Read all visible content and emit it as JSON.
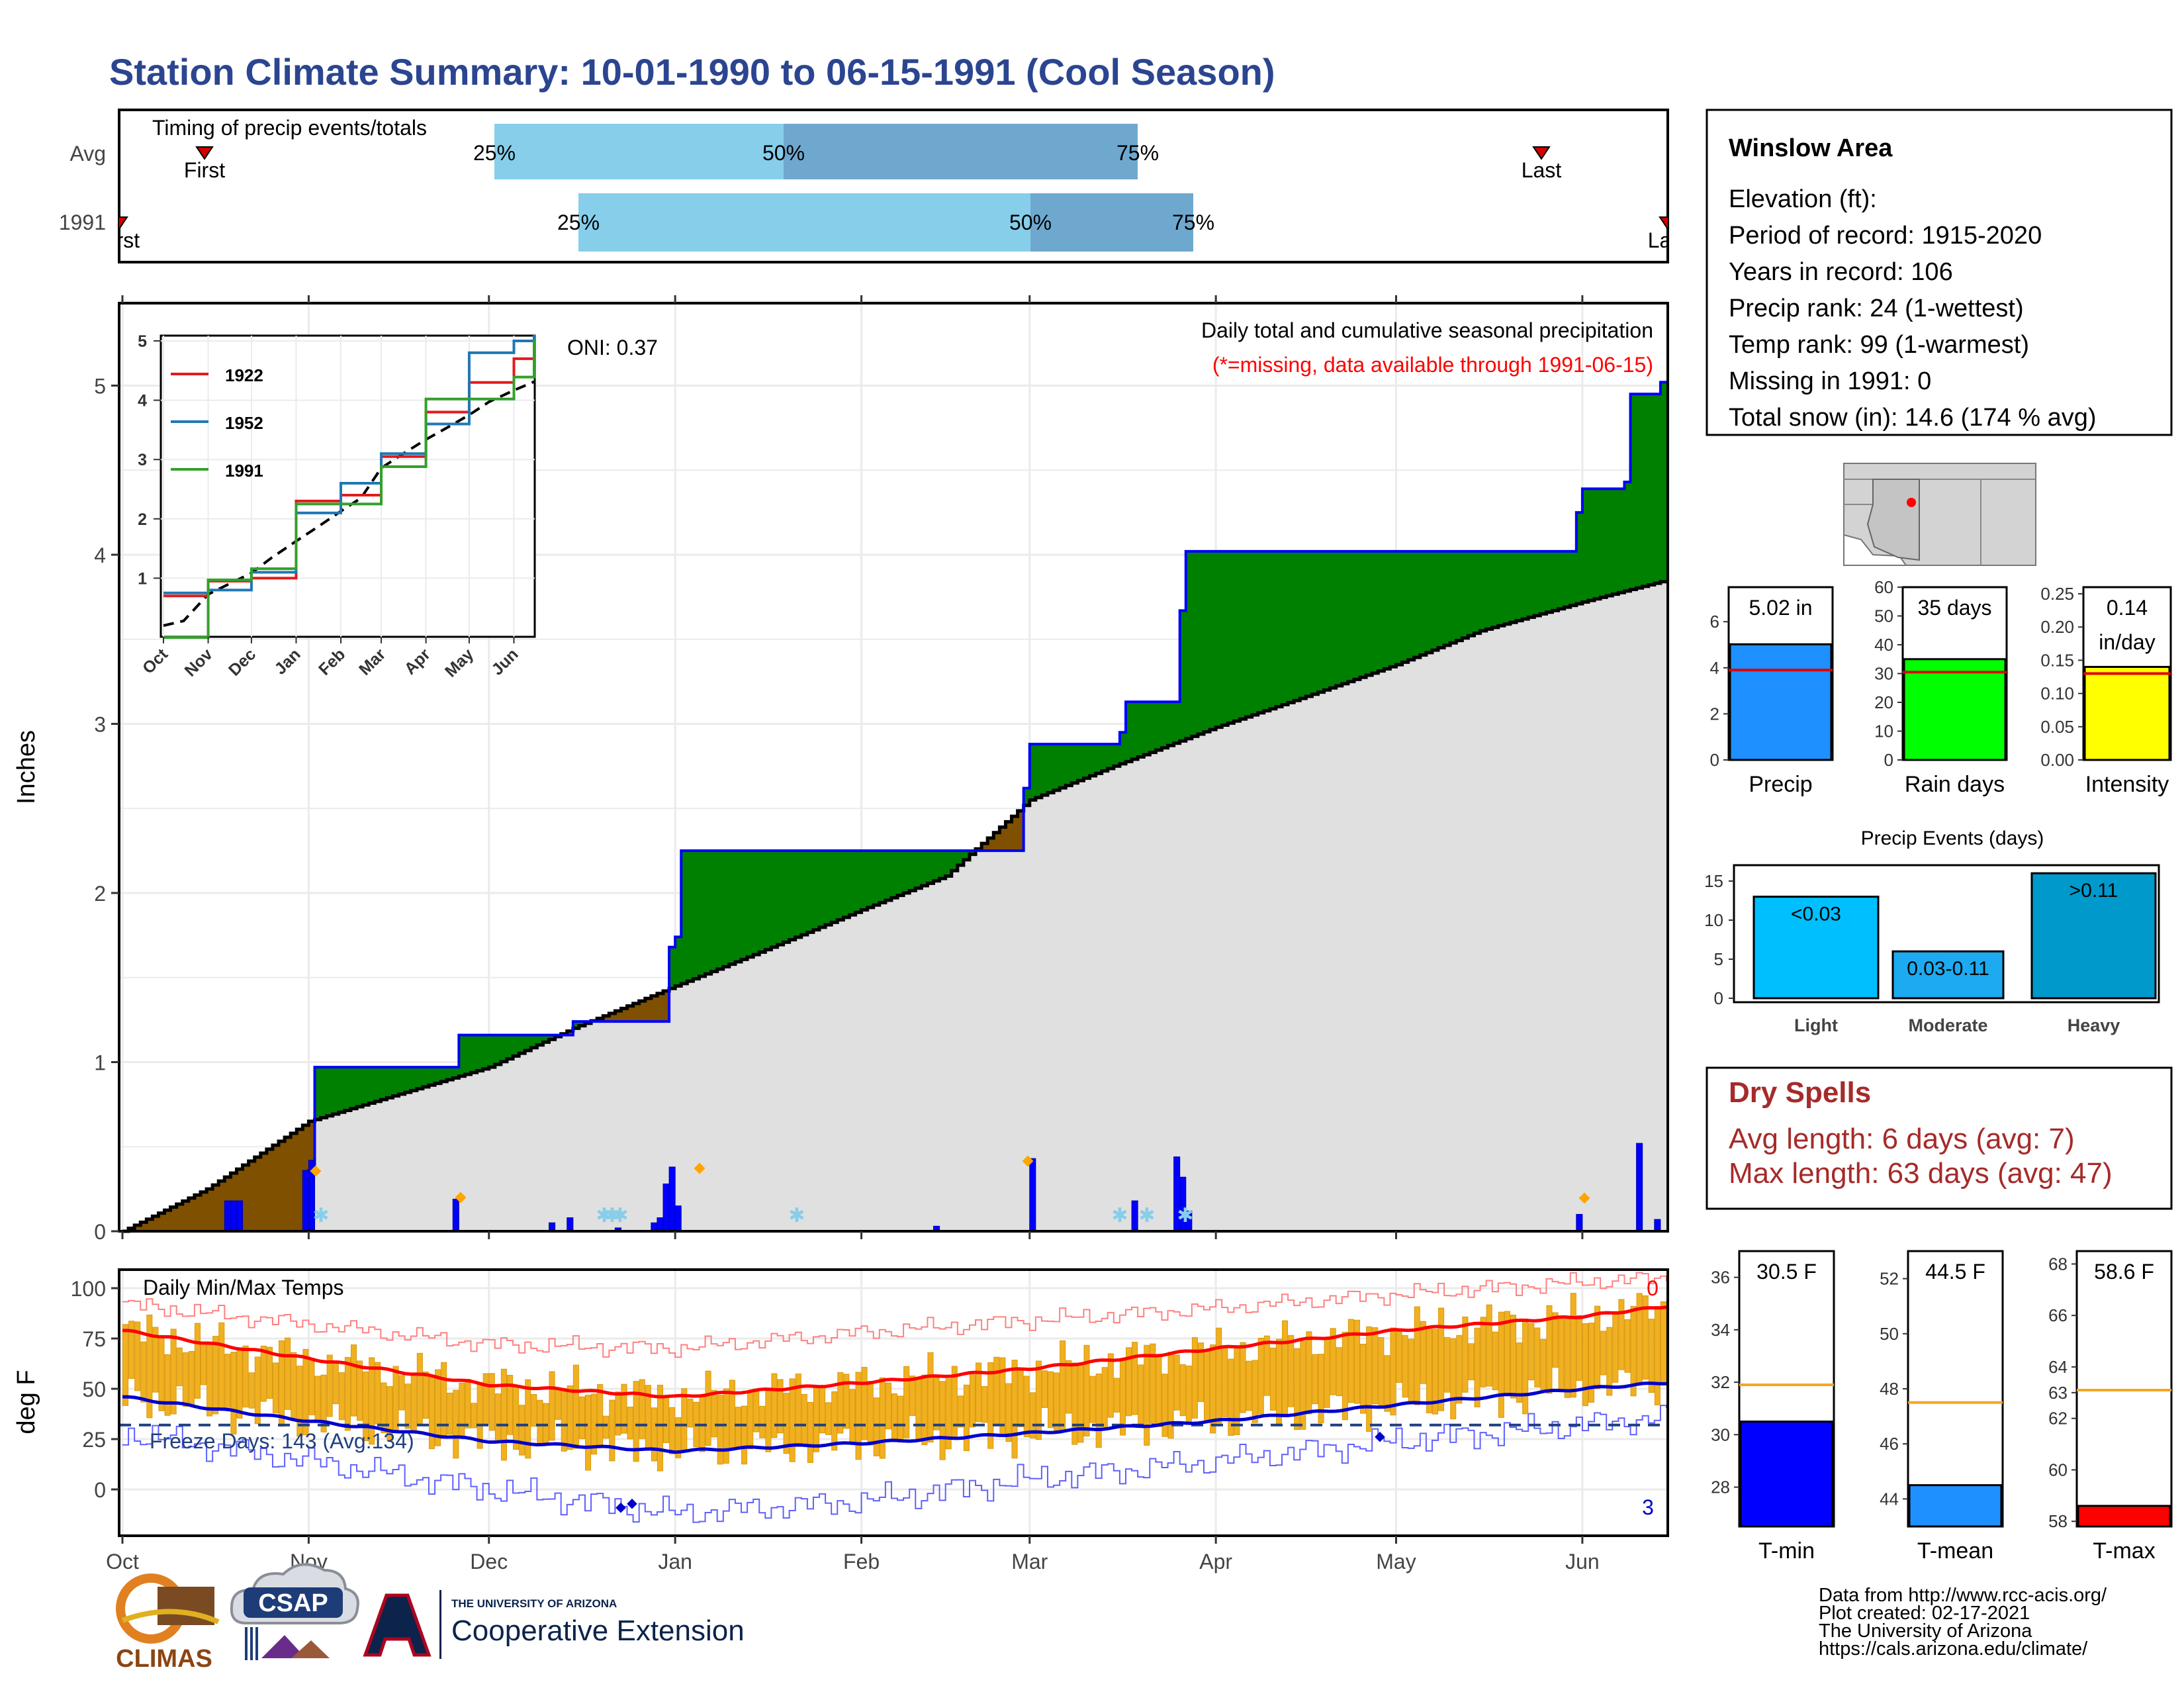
{
  "title": "Station Climate Summary: 10-01-1990 to 06-15-1991 (Cool Season)",
  "timing": {
    "title": "Timing of precip events/totals",
    "rows": [
      {
        "label": "Avg",
        "first_label": "First",
        "last_label": "Last",
        "p25": "25%",
        "p50": "50%",
        "p75": "75%"
      },
      {
        "label": "1991",
        "first_label": "First",
        "last_label": "Last",
        "p25": "25%",
        "p50": "50%",
        "p75": "75%"
      }
    ]
  },
  "station": {
    "name": "Winslow Area",
    "lines": [
      "Elevation (ft):",
      "Period of record: 1915-2020",
      "Years in record: 106",
      "Precip rank: 24 (1-wettest)",
      "Temp rank: 99 (1-warmest)",
      "Missing in 1991: 0",
      "Total snow (in): 14.6 (174 % avg)"
    ]
  },
  "precip_panel": {
    "ylabel": "Inches",
    "title": "Daily total and cumulative seasonal precipitation",
    "subtitle": "(*=missing, data available through 1991-06-15)",
    "oni": "ONI: 0.37",
    "y_ticks": [
      "0",
      "1",
      "2",
      "3",
      "4",
      "5"
    ]
  },
  "x_months": [
    "Oct",
    "Nov",
    "Dec",
    "Jan",
    "Feb",
    "Mar",
    "Apr",
    "May",
    "Jun"
  ],
  "inset": {
    "y_ticks": [
      "1",
      "2",
      "3",
      "4",
      "5"
    ],
    "months": [
      "Oct",
      "Nov",
      "Dec",
      "Jan",
      "Feb",
      "Mar",
      "Apr",
      "May",
      "Jun"
    ],
    "legend": [
      "1922",
      "1952",
      "1991"
    ]
  },
  "temp_panel": {
    "ylabel": "deg F",
    "title": "Daily Min/Max Temps",
    "freeze": "Freeze Days: 143 (Avg:134)",
    "y_ticks": [
      "0",
      "25",
      "50",
      "75",
      "100"
    ],
    "count_top": "0",
    "count_bottom": "3"
  },
  "summary_bars": {
    "precip": {
      "value_label": "5.02 in",
      "axis_label": "Precip",
      "ticks": [
        "0",
        "2",
        "4",
        "6"
      ]
    },
    "rain_days": {
      "value_label": "35 days",
      "axis_label": "Rain days",
      "ticks": [
        "0",
        "10",
        "20",
        "30",
        "40",
        "50",
        "60"
      ]
    },
    "intensity": {
      "value_label": "0.14",
      "unit_label": "in/day",
      "axis_label": "Intensity",
      "ticks": [
        "0.00",
        "0.05",
        "0.10",
        "0.15",
        "0.20",
        "0.25"
      ]
    }
  },
  "events": {
    "title": "Precip Events (days)",
    "ticks": [
      "0",
      "5",
      "10",
      "15"
    ],
    "bars": [
      {
        "bar_label": "<0.03",
        "axis_label": "Light"
      },
      {
        "bar_label": "0.03-0.11",
        "axis_label": "Moderate"
      },
      {
        "bar_label": ">0.11",
        "axis_label": "Heavy"
      }
    ]
  },
  "dry_spells": {
    "title": "Dry Spells",
    "avg": "Avg length: 6 days (avg: 7)",
    "max": "Max length: 63 days (avg: 47)"
  },
  "temp_bars": {
    "tmin": {
      "value_label": "30.5 F",
      "axis_label": "T-min",
      "ticks": [
        "28",
        "30",
        "32",
        "34",
        "36"
      ]
    },
    "tmean": {
      "value_label": "44.5 F",
      "axis_label": "T-mean",
      "ticks": [
        "44",
        "46",
        "48",
        "50",
        "52"
      ]
    },
    "tmax": {
      "value_label": "58.6 F",
      "axis_label": "T-max",
      "ticks": [
        "58",
        "60",
        "62",
        "63",
        "64",
        "66",
        "68"
      ]
    }
  },
  "credits": [
    "Data from http://www.rcc-acis.org/",
    "Plot created: 02-17-2021",
    "The University of Arizona",
    "https://cals.arizona.edu/climate/"
  ],
  "logos": {
    "climas": "CLIMAS",
    "csap": "CSAP",
    "ua_top": "THE UNIVERSITY OF ARIZONA",
    "ua_bottom": "Cooperative Extension"
  },
  "colors": {
    "title": "#2b4590",
    "wet": "#008000",
    "dry": "#7f5000",
    "observed": "#0000ff",
    "climo_fill": "#e0e0e0",
    "tmax_line": "#ff0000",
    "tmin_line": "#0000cc",
    "temp_bars": "#f0b020",
    "dry_spells": "#a52a2a",
    "q_light": "#87ceeb",
    "q_dark": "#6fa8cf"
  },
  "chart_data": [
    {
      "type": "area",
      "name": "cumulative precipitation",
      "x_unit": "date",
      "ylabel": "Inches",
      "ylim": [
        0,
        5.5
      ],
      "series": [
        {
          "name": "1991",
          "points": [
            [
              "1990-10-01",
              0.0
            ],
            [
              "1990-10-31",
              0.0
            ],
            [
              "1990-11-01",
              0.36
            ],
            [
              "1990-11-02",
              0.97
            ],
            [
              "1990-11-25",
              0.97
            ],
            [
              "1990-11-26",
              1.16
            ],
            [
              "1990-12-14",
              1.16
            ],
            [
              "1990-12-15",
              1.24
            ],
            [
              "1990-12-31",
              1.68
            ],
            [
              "1991-01-01",
              1.74
            ],
            [
              "1991-01-02",
              2.25
            ],
            [
              "1991-02-28",
              2.62
            ],
            [
              "1991-03-01",
              2.88
            ],
            [
              "1991-03-15",
              2.88
            ],
            [
              "1991-03-16",
              2.95
            ],
            [
              "1991-03-17",
              3.13
            ],
            [
              "1991-03-25",
              3.13
            ],
            [
              "1991-03-26",
              3.67
            ],
            [
              "1991-03-27",
              4.02
            ],
            [
              "1991-05-30",
              4.02
            ],
            [
              "1991-05-31",
              4.25
            ],
            [
              "1991-06-01",
              4.39
            ],
            [
              "1991-06-08",
              4.43
            ],
            [
              "1991-06-09",
              4.95
            ],
            [
              "1991-06-13",
              4.95
            ],
            [
              "1991-06-14",
              5.02
            ]
          ]
        },
        {
          "name": "climatology",
          "points": [
            [
              "1990-10-01",
              0.0
            ],
            [
              "1990-10-15",
              0.25
            ],
            [
              "1990-11-01",
              0.65
            ],
            [
              "1990-11-15",
              0.8
            ],
            [
              "1990-12-01",
              0.97
            ],
            [
              "1990-12-15",
              1.2
            ],
            [
              "1991-01-01",
              1.45
            ],
            [
              "1991-01-15",
              1.65
            ],
            [
              "1991-02-01",
              1.9
            ],
            [
              "1991-02-15",
              2.1
            ],
            [
              "1991-03-01",
              2.55
            ],
            [
              "1991-03-15",
              2.75
            ],
            [
              "1991-04-01",
              2.98
            ],
            [
              "1991-04-15",
              3.15
            ],
            [
              "1991-05-01",
              3.35
            ],
            [
              "1991-05-15",
              3.55
            ],
            [
              "1991-06-01",
              3.72
            ],
            [
              "1991-06-15",
              3.85
            ]
          ]
        }
      ],
      "daily_bars": [
        [
          "1990-10-18",
          0.18
        ],
        [
          "1990-10-19",
          0.18
        ],
        [
          "1990-10-20",
          0.18
        ],
        [
          "1990-10-31",
          0.36
        ],
        [
          "1990-11-01",
          0.42
        ],
        [
          "1990-11-25",
          0.19
        ],
        [
          "1990-12-11",
          0.05
        ],
        [
          "1990-12-14",
          0.08
        ],
        [
          "1990-12-22",
          0.02
        ],
        [
          "1990-12-28",
          0.05
        ],
        [
          "1990-12-29",
          0.08
        ],
        [
          "1990-12-30",
          0.28
        ],
        [
          "1990-12-31",
          0.38
        ],
        [
          "1991-01-01",
          0.15
        ],
        [
          "1991-02-13",
          0.03
        ],
        [
          "1991-03-01",
          0.43
        ],
        [
          "1991-03-18",
          0.18
        ],
        [
          "1991-03-25",
          0.44
        ],
        [
          "1991-03-26",
          0.32
        ],
        [
          "1991-03-27",
          0.12
        ],
        [
          "1991-05-31",
          0.1
        ],
        [
          "1991-06-10",
          0.52
        ],
        [
          "1991-06-13",
          0.07
        ]
      ]
    },
    {
      "type": "line",
      "name": "inset cumulative precipitation",
      "x_unit": "date",
      "ylim": [
        0,
        5
      ],
      "series": [
        {
          "name": "1922",
          "points": [
            [
              "1990-10-01",
              0.7
            ],
            [
              "1990-11-01",
              0.95
            ],
            [
              "1990-12-01",
              1.0
            ],
            [
              "1991-01-01",
              2.3
            ],
            [
              "1991-02-01",
              2.4
            ],
            [
              "1991-03-01",
              3.05
            ],
            [
              "1991-04-01",
              3.8
            ],
            [
              "1991-05-01",
              4.3
            ],
            [
              "1991-06-01",
              4.7
            ],
            [
              "1991-06-15",
              4.9
            ]
          ]
        },
        {
          "name": "1952",
          "points": [
            [
              "1990-10-01",
              0.75
            ],
            [
              "1990-11-01",
              0.8
            ],
            [
              "1990-12-01",
              1.1
            ],
            [
              "1991-01-01",
              2.1
            ],
            [
              "1991-02-01",
              2.6
            ],
            [
              "1991-03-01",
              3.1
            ],
            [
              "1991-04-01",
              3.6
            ],
            [
              "1991-05-01",
              4.8
            ],
            [
              "1991-06-01",
              5.0
            ],
            [
              "1991-06-15",
              5.1
            ]
          ]
        },
        {
          "name": "1991",
          "points": [
            [
              "1990-10-01",
              0.0
            ],
            [
              "1990-11-01",
              0.97
            ],
            [
              "1990-12-01",
              1.16
            ],
            [
              "1991-01-01",
              2.25
            ],
            [
              "1991-02-01",
              2.25
            ],
            [
              "1991-03-01",
              2.88
            ],
            [
              "1991-04-01",
              4.02
            ],
            [
              "1991-05-01",
              4.02
            ],
            [
              "1991-06-01",
              4.39
            ],
            [
              "1991-06-15",
              5.02
            ]
          ]
        }
      ]
    },
    {
      "type": "bar",
      "name": "daily min/max temperature",
      "x_unit": "date",
      "ylabel": "deg F",
      "ylim": [
        -18,
        108
      ],
      "series": [
        {
          "name": "max climatology",
          "points": [
            [
              "1990-10-01",
              79
            ],
            [
              "1990-11-01",
              65
            ],
            [
              "1990-12-01",
              52
            ],
            [
              "1991-01-01",
              46
            ],
            [
              "1991-02-01",
              53
            ],
            [
              "1991-03-01",
              60
            ],
            [
              "1991-04-01",
              70
            ],
            [
              "1991-05-01",
              79
            ],
            [
              "1991-06-01",
              86
            ],
            [
              "1991-06-15",
              91
            ]
          ]
        },
        {
          "name": "min climatology",
          "points": [
            [
              "1990-10-01",
              46
            ],
            [
              "1990-11-01",
              34
            ],
            [
              "1990-12-01",
              24
            ],
            [
              "1991-01-01",
              19
            ],
            [
              "1991-02-01",
              23
            ],
            [
              "1991-03-01",
              28
            ],
            [
              "1991-04-01",
              34
            ],
            [
              "1991-05-01",
              42
            ],
            [
              "1991-06-01",
              50
            ],
            [
              "1991-06-15",
              53
            ]
          ]
        },
        {
          "name": "record max",
          "points": [
            [
              "1990-10-01",
              92
            ],
            [
              "1990-11-01",
              82
            ],
            [
              "1990-12-01",
              72
            ],
            [
              "1991-01-01",
              70
            ],
            [
              "1991-02-01",
              78
            ],
            [
              "1991-03-01",
              84
            ],
            [
              "1991-04-01",
              90
            ],
            [
              "1991-05-01",
              97
            ],
            [
              "1991-06-01",
              103
            ],
            [
              "1991-06-15",
              105
            ]
          ]
        },
        {
          "name": "record min",
          "points": [
            [
              "1990-10-01",
              28
            ],
            [
              "1990-11-01",
              14
            ],
            [
              "1990-12-01",
              0
            ],
            [
              "1991-01-01",
              -12
            ],
            [
              "1991-02-01",
              -6
            ],
            [
              "1991-03-01",
              5
            ],
            [
              "1991-04-01",
              14
            ],
            [
              "1991-05-01",
              24
            ],
            [
              "1991-06-01",
              32
            ],
            [
              "1991-06-15",
              36
            ]
          ]
        }
      ]
    },
    {
      "type": "bar",
      "name": "season summary",
      "categories": [
        "Precip",
        "Rain days",
        "Intensity"
      ],
      "values": [
        5.02,
        35,
        0.14
      ],
      "averages": [
        3.9,
        30.5,
        0.13
      ],
      "ylims": [
        [
          0,
          7.5
        ],
        [
          0,
          60
        ],
        [
          0,
          0.26
        ]
      ]
    },
    {
      "type": "bar",
      "name": "precip events",
      "title": "Precip Events (days)",
      "categories": [
        "Light",
        "Moderate",
        "Heavy"
      ],
      "values": [
        13,
        6,
        16
      ],
      "ylim": [
        0,
        17
      ]
    },
    {
      "type": "bar",
      "name": "temperature summary",
      "categories": [
        "T-min",
        "T-mean",
        "T-max"
      ],
      "values": [
        30.5,
        44.5,
        58.6
      ],
      "averages": [
        31.9,
        47.5,
        63.1
      ],
      "ylims": [
        [
          26.5,
          37
        ],
        [
          43,
          53
        ],
        [
          57.8,
          68.5
        ]
      ]
    }
  ]
}
